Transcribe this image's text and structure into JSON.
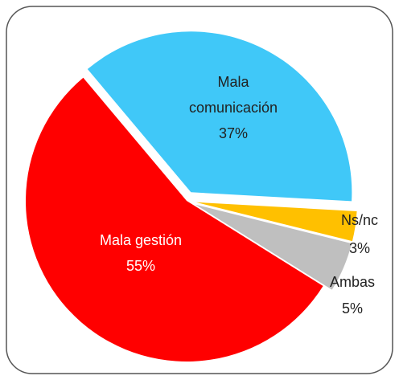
{
  "chart_data": {
    "type": "pie",
    "categories": [
      "Mala comunicación",
      "Ns/nc",
      "Ambas",
      "Mala gestión"
    ],
    "values": [
      37,
      3,
      5,
      55
    ],
    "value_labels": [
      "37%",
      "3%",
      "5%",
      "55%"
    ],
    "colors": [
      "#40c8f8",
      "#ffc000",
      "#bfbfbf",
      "#ff0000"
    ]
  }
}
